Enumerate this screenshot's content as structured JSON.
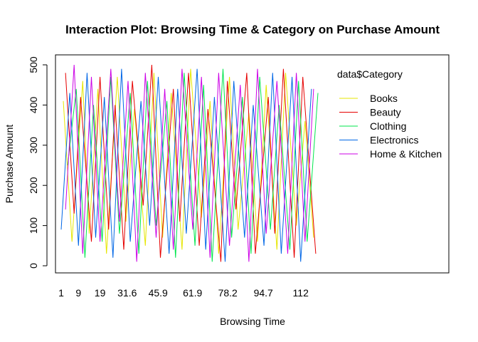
{
  "chart_data": {
    "type": "line",
    "title": "Interaction Plot: Browsing Time & Category on Purchase Amount",
    "xlabel": "Browsing Time",
    "ylabel": "Purchase Amount",
    "ylim": [
      0,
      500
    ],
    "y_ticks": [
      0,
      100,
      200,
      300,
      400,
      500
    ],
    "x_tick_labels": [
      "1",
      "9",
      "19",
      "31.6",
      "45.9",
      "61.9",
      "78.2",
      "94.7",
      "112"
    ],
    "x_tick_positions": [
      1,
      9,
      19,
      31.6,
      45.9,
      61.9,
      78.2,
      94.7,
      112
    ],
    "xlim": [
      1,
      121
    ],
    "grid": false,
    "legend": {
      "title": "data$Category",
      "placement": "top-right",
      "entries": [
        {
          "name": "Books",
          "color": "#e6e600"
        },
        {
          "name": "Beauty",
          "color": "#e60000"
        },
        {
          "name": "Clothing",
          "color": "#00e64d"
        },
        {
          "name": "Electronics",
          "color": "#0066e6"
        },
        {
          "name": "Home & Kitchen",
          "color": "#cc00e6"
        }
      ]
    },
    "series": [
      {
        "name": "Books",
        "color": "#e6e600",
        "x": [
          2,
          6,
          11,
          14,
          18,
          22,
          27,
          31,
          35,
          40,
          44,
          48,
          52,
          57,
          61,
          66,
          70,
          74,
          79,
          83,
          88,
          92,
          96,
          101,
          105,
          110,
          114,
          118
        ],
        "y": [
          410,
          60,
          460,
          80,
          440,
          30,
          470,
          110,
          390,
          50,
          480,
          70,
          430,
          40,
          490,
          120,
          410,
          30,
          470,
          90,
          380,
          60,
          450,
          40,
          480,
          100,
          360,
          70
        ]
      },
      {
        "name": "Beauty",
        "color": "#e60000",
        "x": [
          3,
          7,
          10,
          15,
          19,
          23,
          26,
          30,
          34,
          39,
          43,
          47,
          53,
          56,
          60,
          65,
          69,
          75,
          78,
          82,
          87,
          91,
          97,
          100,
          104,
          109,
          113,
          119
        ],
        "y": [
          480,
          130,
          420,
          60,
          470,
          90,
          400,
          40,
          460,
          150,
          500,
          20,
          440,
          110,
          480,
          50,
          390,
          10,
          460,
          140,
          480,
          30,
          420,
          80,
          490,
          20,
          470,
          30
        ]
      },
      {
        "name": "Clothing",
        "color": "#00e64d",
        "x": [
          4,
          8,
          12,
          16,
          20,
          24,
          28,
          33,
          37,
          41,
          45,
          50,
          54,
          58,
          63,
          67,
          71,
          76,
          80,
          85,
          89,
          93,
          98,
          102,
          107,
          111,
          115,
          120
        ],
        "y": [
          250,
          440,
          20,
          400,
          60,
          470,
          80,
          430,
          30,
          460,
          100,
          410,
          20,
          480,
          50,
          450,
          10,
          490,
          70,
          420,
          30,
          470,
          90,
          400,
          40,
          460,
          60,
          430
        ]
      },
      {
        "name": "Electronics",
        "color": "#0066e6",
        "x": [
          1,
          5,
          9,
          13,
          17,
          21,
          25,
          29,
          33,
          38,
          42,
          46,
          51,
          55,
          59,
          64,
          68,
          72,
          77,
          81,
          86,
          90,
          95,
          99,
          103,
          108,
          112,
          117
        ],
        "y": [
          90,
          430,
          50,
          480,
          70,
          420,
          20,
          490,
          60,
          410,
          100,
          470,
          30,
          440,
          80,
          490,
          40,
          420,
          10,
          460,
          70,
          400,
          50,
          480,
          30,
          470,
          10,
          440
        ]
      },
      {
        "name": "Home & Kitchen",
        "color": "#cc00e6",
        "x": [
          3,
          7,
          11,
          15,
          19,
          24,
          28,
          32,
          36,
          40,
          45,
          49,
          53,
          57,
          62,
          66,
          70,
          74,
          79,
          84,
          88,
          92,
          96,
          101,
          106,
          110,
          114,
          118
        ],
        "y": [
          140,
          500,
          30,
          470,
          60,
          490,
          110,
          460,
          10,
          480,
          70,
          440,
          40,
          490,
          90,
          470,
          20,
          480,
          50,
          450,
          10,
          490,
          80,
          460,
          30,
          480,
          60,
          440
        ]
      }
    ]
  }
}
